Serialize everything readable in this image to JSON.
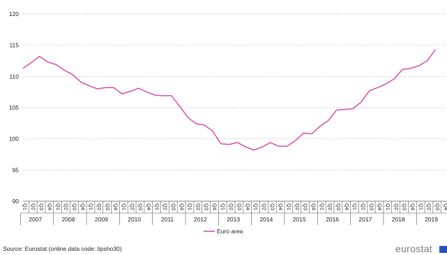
{
  "chart_data": {
    "type": "line",
    "ylim": [
      90,
      120
    ],
    "yticks": [
      90,
      95,
      100,
      105,
      110,
      115,
      120
    ],
    "quarters": [
      "Q1",
      "Q2",
      "Q3",
      "Q4"
    ],
    "years": [
      "2007",
      "2008",
      "2009",
      "2010",
      "2011",
      "2012",
      "2013",
      "2014",
      "2015",
      "2016",
      "2017",
      "2018",
      "2019"
    ],
    "series": [
      {
        "name": "Euro area",
        "color": "#d64fa5",
        "values": [
          111.3,
          112.2,
          113.2,
          112.3,
          111.9,
          111.0,
          110.3,
          109.1,
          108.5,
          108.0,
          108.2,
          108.2,
          107.2,
          107.6,
          108.1,
          107.5,
          107.0,
          106.9,
          106.9,
          105.2,
          103.4,
          102.4,
          102.2,
          101.2,
          99.2,
          99.1,
          99.4,
          98.7,
          98.2,
          98.7,
          99.4,
          98.8,
          98.8,
          99.7,
          100.9,
          100.8,
          102.0,
          102.9,
          104.6,
          104.7,
          104.8,
          105.9,
          107.7,
          108.2,
          108.8,
          109.6,
          111.1,
          111.3,
          111.7,
          112.5,
          114.3
        ]
      }
    ],
    "grid": true,
    "legend": "bottom-center"
  },
  "footer": {
    "source_label": "Source:",
    "source_text": " Eurostat (online data code: tipsho30)",
    "logo": "eurostat"
  }
}
